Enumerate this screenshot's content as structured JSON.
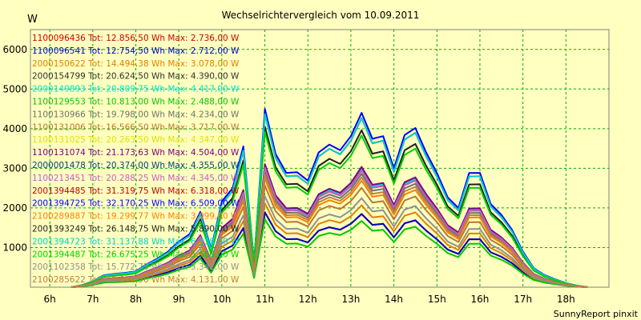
{
  "chart_data": {
    "type": "line",
    "title": "Wechselrichtervergleich vom 10.09.2011",
    "ylabel": "W",
    "xlabel": "",
    "credit": "SunnyReport pinxit",
    "grid": true,
    "legend_position": "top-left (inside plot)",
    "ylim": [
      0,
      6500
    ],
    "xlim": [
      5.55,
      19.0
    ],
    "y_ticks": [
      1000,
      2000,
      3000,
      4000,
      5000,
      6000
    ],
    "x_ticks": [
      {
        "value": 6,
        "label": "6h"
      },
      {
        "value": 7,
        "label": "7h"
      },
      {
        "value": 8,
        "label": "8h"
      },
      {
        "value": 9,
        "label": "9h"
      },
      {
        "value": 10,
        "label": "10h"
      },
      {
        "value": 11,
        "label": "11h"
      },
      {
        "value": 12,
        "label": "12h"
      },
      {
        "value": 13,
        "label": "13h"
      },
      {
        "value": 14,
        "label": "14h"
      },
      {
        "value": 15,
        "label": "15h"
      },
      {
        "value": 16,
        "label": "16h"
      },
      {
        "value": 17,
        "label": "17h"
      },
      {
        "value": 18,
        "label": "18h"
      }
    ],
    "x": [
      6.5,
      6.75,
      7,
      7.25,
      7.5,
      7.75,
      8,
      8.25,
      8.5,
      8.75,
      9,
      9.25,
      9.5,
      9.75,
      10,
      10.25,
      10.5,
      10.75,
      11,
      11.25,
      11.5,
      11.75,
      12,
      12.25,
      12.5,
      12.75,
      13,
      13.25,
      13.5,
      13.75,
      14,
      14.25,
      14.5,
      14.75,
      15,
      15.25,
      15.5,
      15.75,
      16,
      16.25,
      16.5,
      16.75,
      17,
      17.25,
      17.5,
      17.75,
      18,
      18.25,
      18.5
    ],
    "series": [
      {
        "name": "1100096436 Tot: 12.856,50 Wh Max: 2.736,00 W",
        "color": "#d00000",
        "scale": 0.42,
        "offset": 0.0
      },
      {
        "name": "1100096541 Tot: 12.754,50 Wh Max: 2.712,00 W",
        "color": "#0000c8",
        "scale": 0.42,
        "offset": 0.0
      },
      {
        "name": "2000150622 Tot: 14.494,38 Wh Max: 3.078,00 W",
        "color": "#e08000",
        "scale": 0.47,
        "offset": 0.0
      },
      {
        "name": "2000154799 Tot: 20.624,50 Wh Max: 4.390,00 W",
        "color": "#303030",
        "scale": 0.67,
        "offset": 0.0
      },
      {
        "name": "2000149893 Tot: 20.809,75 Wh Max: 4.417,00 W",
        "color": "#00e0e0",
        "scale": 0.68,
        "offset": 0.0
      },
      {
        "name": "1100129553 Tot: 10.813,00 Wh Max: 2.488,00 W",
        "color": "#00c800",
        "scale": 0.38,
        "offset": 0.0
      },
      {
        "name": "1100130966 Tot: 19.798,00 Wh Max: 4.234,00 W",
        "color": "#707070",
        "scale": 0.65,
        "offset": 0.0
      },
      {
        "name": "1100131006 Tot: 16.566,50 Wh Max: 3.717,00 W",
        "color": "#b87830",
        "scale": 0.57,
        "offset": 0.0
      },
      {
        "name": "1100131025 Tot: 20.263,50 Wh Max: 4.347,00 W",
        "color": "#e0e000",
        "scale": 0.67,
        "offset": 0.0
      },
      {
        "name": "1100131074 Tot: 21.173,63 Wh Max: 4.504,00 W",
        "color": "#800080",
        "scale": 0.69,
        "offset": 0.0
      },
      {
        "name": "2000001478 Tot: 20.374,00 Wh Max: 4.355,00 W",
        "color": "#004080",
        "scale": 0.67,
        "offset": 0.0
      },
      {
        "name": "1100213451 Tot: 20.288,25 Wh Max: 4.345,00 W",
        "color": "#c060c0",
        "scale": 0.67,
        "offset": 0.0
      },
      {
        "name": "2001394485 Tot: 31.319,75 Wh Max: 6.318,00 W",
        "color": "#c00000",
        "scale": 0.97,
        "offset": 0.0
      },
      {
        "name": "2001394725 Tot: 32.170,25 Wh Max: 6.509,00 W",
        "color": "#0000ff",
        "scale": 1.0,
        "offset": 0.0
      },
      {
        "name": "2100289887 Tot: 19.299,77 Wh Max: 3.999,00 W",
        "color": "#ff8000",
        "scale": 0.61,
        "offset": 0.0
      },
      {
        "name": "2001393249 Tot: 26.148,75 Wh Max: 5.890,00 W",
        "color": "#202020",
        "scale": 0.9,
        "offset": 0.0
      },
      {
        "name": "2001394723 Tot: 31.137,88 Wh Max: 6.318,00 W",
        "color": "#00d0d0",
        "scale": 0.97,
        "offset": 0.0
      },
      {
        "name": "2001394487 Tot: 26.675,25 Wh Max: 5.660,00 W",
        "color": "#00d000",
        "scale": 0.87,
        "offset": 0.0
      },
      {
        "name": "2001102358 Tot: 15.772,75 Wh Max: 3.342,00 W",
        "color": "#909090",
        "scale": 0.51,
        "offset": 0.0
      },
      {
        "name": "2100285622 Tot: 19.004,50 Wh Max: 4.131,00 W",
        "color": "#c08040",
        "scale": 0.63,
        "offset": 0.0
      }
    ],
    "profile_values": [
      0,
      50,
      150,
      300,
      350,
      350,
      400,
      600,
      700,
      900,
      1200,
      1300,
      1900,
      1000,
      2100,
      2500,
      3700,
      600,
      4500,
      3500,
      2800,
      2900,
      2800,
      3300,
      3600,
      3600,
      3700,
      4400,
      3900,
      3700,
      3000,
      4000,
      3900,
      3400,
      3000,
      2200,
      2000,
      3000,
      2800,
      2100,
      1900,
      1400,
      900,
      500,
      300,
      200,
      100,
      40,
      0
    ]
  }
}
